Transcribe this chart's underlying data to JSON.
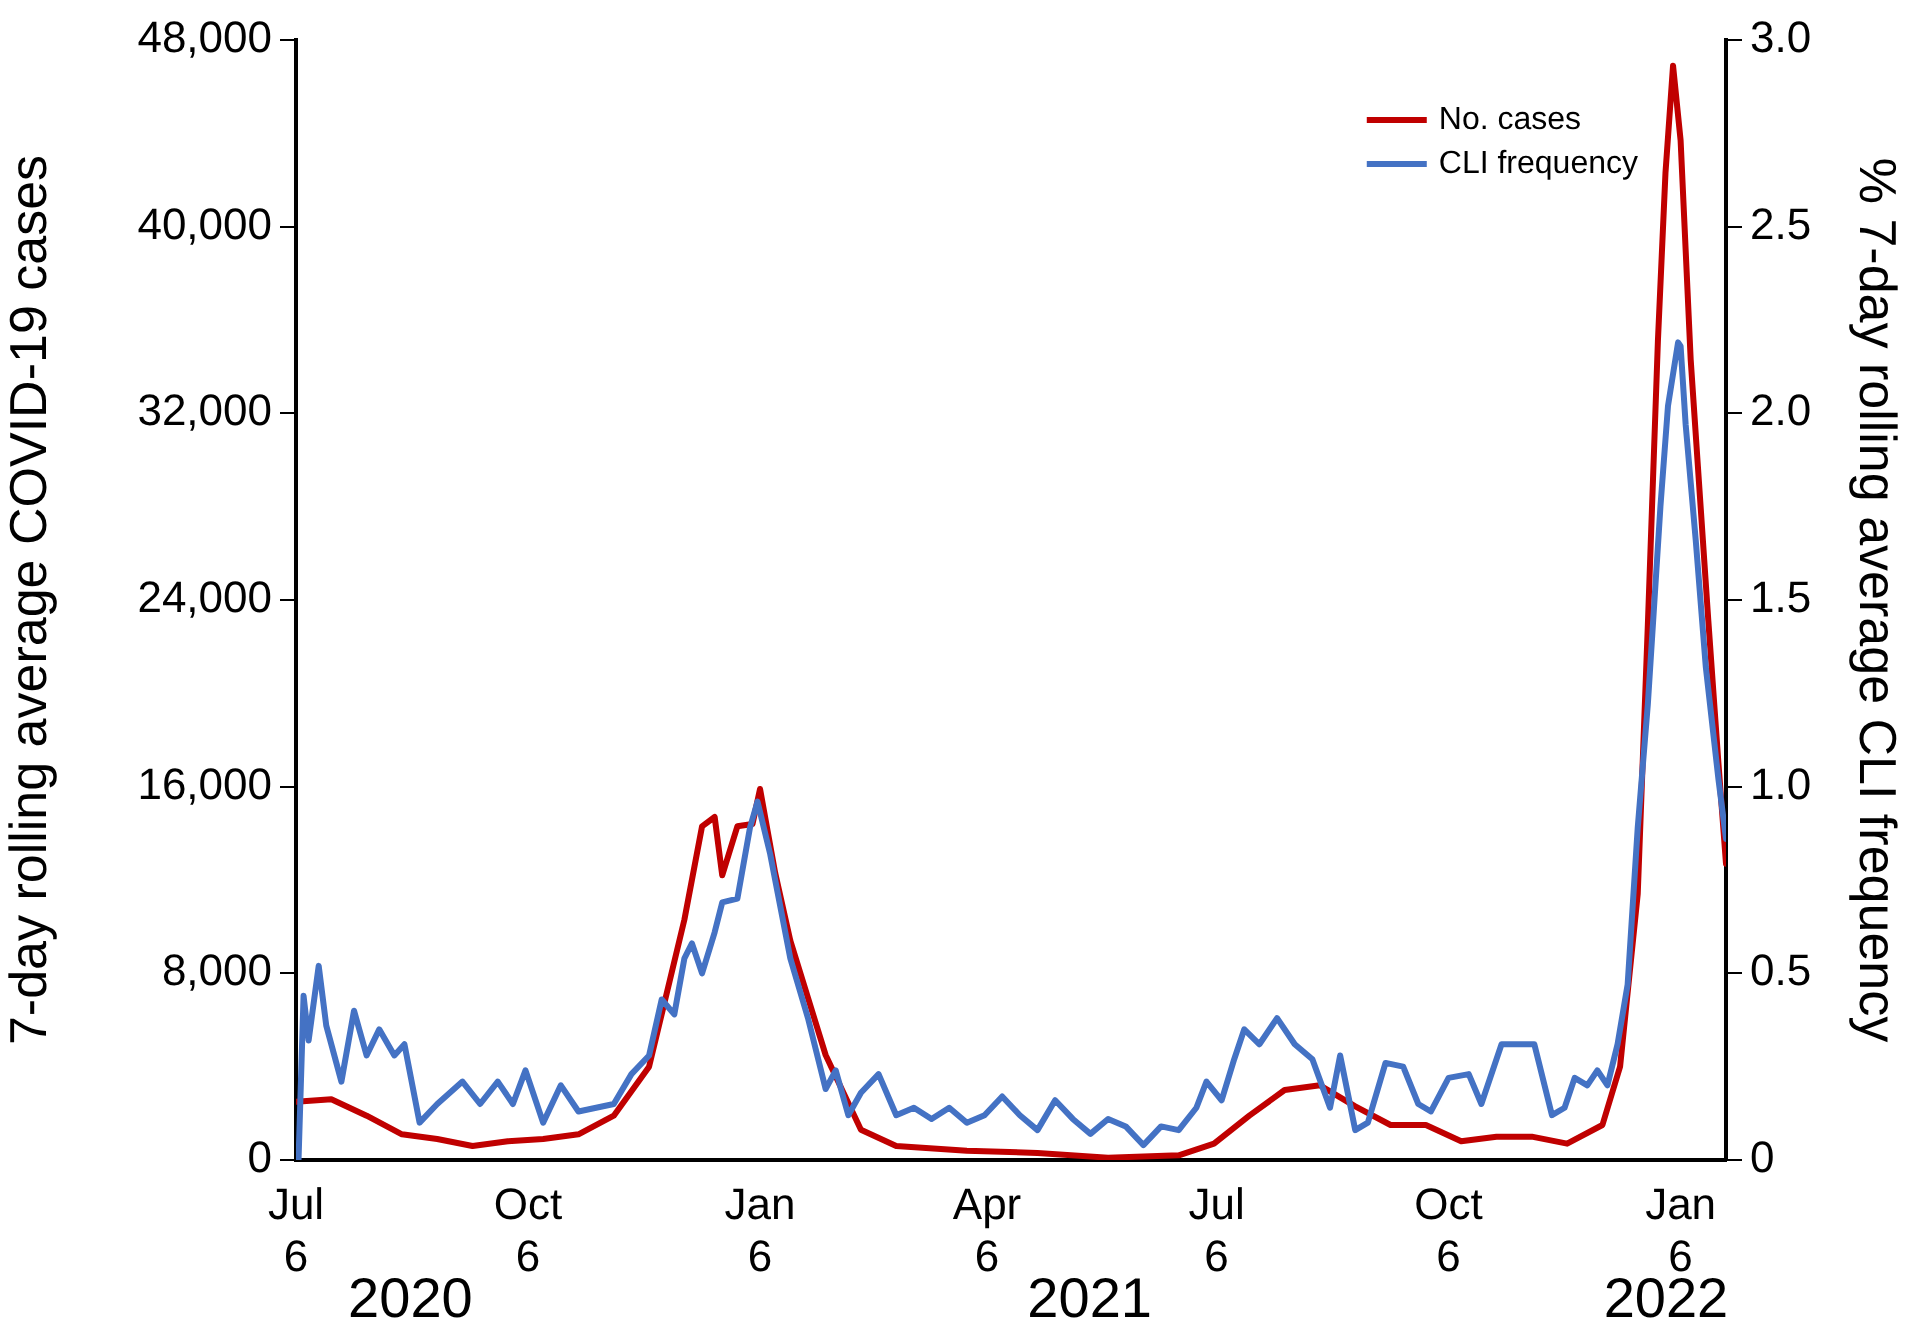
{
  "chart_data": {
    "type": "line",
    "xlabel": null,
    "ylabel": "7-day rolling average COVID-19 cases",
    "y2label": "% 7-day rolling average CLI frequency",
    "xlim": [
      "2020-07-06",
      "2022-01-24"
    ],
    "xticks": [
      {
        "value": "2020-07-06",
        "label": "Jul\n6"
      },
      {
        "value": "2020-10-06",
        "label": "Oct\n6"
      },
      {
        "value": "2021-01-06",
        "label": "Jan\n6"
      },
      {
        "value": "2021-04-06",
        "label": "Apr\n6"
      },
      {
        "value": "2021-07-06",
        "label": "Jul\n6"
      },
      {
        "value": "2021-10-06",
        "label": "Oct\n6"
      },
      {
        "value": "2022-01-06",
        "label": "Jan\n6"
      }
    ],
    "ylim": [
      0,
      48000
    ],
    "yticks": [
      0,
      {
        "value": 8000,
        "label": "8,000"
      },
      {
        "value": 16000,
        "label": "16,000"
      },
      {
        "value": 24000,
        "label": "24,000"
      },
      {
        "value": 32000,
        "label": "32,000"
      },
      {
        "value": 40000,
        "label": "40,000"
      },
      {
        "value": 48000,
        "label": "48,000"
      }
    ],
    "y2lim": [
      0,
      3
    ],
    "y2ticks": [
      0,
      0.5,
      {
        "value": 1,
        "label": "1.0"
      },
      1.5,
      {
        "value": 2,
        "label": "2.0"
      },
      2.5,
      {
        "value": 3,
        "label": "3.0"
      }
    ],
    "annotations": [
      "2020",
      "2021",
      "2022"
    ],
    "grid": false,
    "legend": "top right",
    "marker": "none",
    "line_style": "solid",
    "series": [
      {
        "name": "No. cases",
        "color": "#c00000",
        "x": [
          "2020-07-06",
          "2020-07-20",
          "2020-08-03",
          "2020-08-17",
          "2020-08-31",
          "2020-09-14",
          "2020-09-28",
          "2020-10-12",
          "2020-10-26",
          "2020-11-09",
          "2020-11-23",
          "2020-12-07",
          "2020-12-14",
          "2020-12-19",
          "2020-12-22",
          "2020-12-28",
          "2021-01-03",
          "2021-01-06",
          "2021-01-12",
          "2021-01-18",
          "2021-02-01",
          "2021-02-15",
          "2021-03-01",
          "2021-03-29",
          "2021-04-26",
          "2021-05-24",
          "2021-06-21",
          "2021-07-05",
          "2021-07-19",
          "2021-08-02",
          "2021-08-16",
          "2021-08-30",
          "2021-09-13",
          "2021-09-27",
          "2021-10-11",
          "2021-10-25",
          "2021-11-08",
          "2021-11-22",
          "2021-12-06",
          "2021-12-13",
          "2021-12-20",
          "2021-12-24",
          "2021-12-28",
          "2021-12-31",
          "2022-01-03",
          "2022-01-06",
          "2022-01-10",
          "2022-01-17",
          "2022-01-21",
          "2022-01-24"
        ],
        "values": [
          2500,
          2600,
          1900,
          1100,
          900,
          600,
          800,
          900,
          1100,
          1900,
          4000,
          10300,
          14300,
          14700,
          12200,
          14300,
          14400,
          15900,
          12300,
          9400,
          4500,
          1300,
          600,
          400,
          300,
          100,
          200,
          700,
          1900,
          3000,
          3200,
          2300,
          1500,
          1500,
          800,
          1000,
          1000,
          700,
          1500,
          4000,
          11400,
          22900,
          35100,
          42300,
          46900,
          43700,
          34300,
          23100,
          17000,
          12700
        ]
      },
      {
        "name": "CLI frequency",
        "color": "#4472c4",
        "axis": "y2",
        "x": [
          "2020-07-06",
          "2020-07-07",
          "2020-07-09",
          "2020-07-11",
          "2020-07-15",
          "2020-07-18",
          "2020-07-24",
          "2020-07-29",
          "2020-08-03",
          "2020-08-08",
          "2020-08-14",
          "2020-08-18",
          "2020-08-24",
          "2020-08-31",
          "2020-09-10",
          "2020-09-17",
          "2020-09-24",
          "2020-09-30",
          "2020-10-05",
          "2020-10-12",
          "2020-10-19",
          "2020-10-26",
          "2020-11-09",
          "2020-11-16",
          "2020-11-23",
          "2020-11-28",
          "2020-12-03",
          "2020-12-07",
          "2020-12-10",
          "2020-12-14",
          "2020-12-19",
          "2020-12-22",
          "2020-12-28",
          "2021-01-02",
          "2021-01-05",
          "2021-01-10",
          "2021-01-18",
          "2021-01-25",
          "2021-02-01",
          "2021-02-05",
          "2021-02-10",
          "2021-02-15",
          "2021-02-22",
          "2021-03-01",
          "2021-03-08",
          "2021-03-15",
          "2021-03-22",
          "2021-03-29",
          "2021-04-05",
          "2021-04-12",
          "2021-04-19",
          "2021-04-26",
          "2021-05-03",
          "2021-05-10",
          "2021-05-17",
          "2021-05-24",
          "2021-05-31",
          "2021-06-07",
          "2021-06-14",
          "2021-06-21",
          "2021-06-28",
          "2021-07-02",
          "2021-07-08",
          "2021-07-13",
          "2021-07-17",
          "2021-07-23",
          "2021-07-30",
          "2021-08-06",
          "2021-08-13",
          "2021-08-20",
          "2021-08-24",
          "2021-08-30",
          "2021-09-04",
          "2021-09-11",
          "2021-09-18",
          "2021-09-24",
          "2021-09-29",
          "2021-10-06",
          "2021-10-14",
          "2021-10-19",
          "2021-10-27",
          "2021-11-04",
          "2021-11-09",
          "2021-11-16",
          "2021-11-21",
          "2021-11-25",
          "2021-11-30",
          "2021-12-04",
          "2021-12-08",
          "2021-12-12",
          "2021-12-16",
          "2021-12-20",
          "2021-12-24",
          "2021-12-29",
          "2022-01-01",
          "2022-01-05",
          "2022-01-06",
          "2022-01-08",
          "2022-01-12",
          "2022-01-16",
          "2022-01-21",
          "2022-01-24"
        ],
        "values": [
          0,
          0,
          0.44,
          0.32,
          0.52,
          0.36,
          0.21,
          0.4,
          0.28,
          0.35,
          0.28,
          0.31,
          0.1,
          0.15,
          0.21,
          0.15,
          0.21,
          0.15,
          0.24,
          0.1,
          0.2,
          0.13,
          0.15,
          0.23,
          0.28,
          0.43,
          0.39,
          0.54,
          0.58,
          0.5,
          0.61,
          0.69,
          0.7,
          0.89,
          0.96,
          0.82,
          0.54,
          0.38,
          0.19,
          0.24,
          0.12,
          0.18,
          0.23,
          0.12,
          0.14,
          0.11,
          0.14,
          0.1,
          0.12,
          0.17,
          0.12,
          0.08,
          0.16,
          0.11,
          0.07,
          0.11,
          0.09,
          0.04,
          0.09,
          0.08,
          0.14,
          0.21,
          0.16,
          0.27,
          0.35,
          0.31,
          0.38,
          0.31,
          0.27,
          0.14,
          0.28,
          0.08,
          0.1,
          0.26,
          0.25,
          0.15,
          0.13,
          0.22,
          0.23,
          0.15,
          0.31,
          0.31,
          0.31,
          0.12,
          0.14,
          0.22,
          0.2,
          0.24,
          0.2,
          0.31,
          0.47,
          0.89,
          1.22,
          1.75,
          2.02,
          2.19,
          2.18,
          1.97,
          1.66,
          1.32,
          1.02,
          0.86
        ]
      }
    ]
  }
}
